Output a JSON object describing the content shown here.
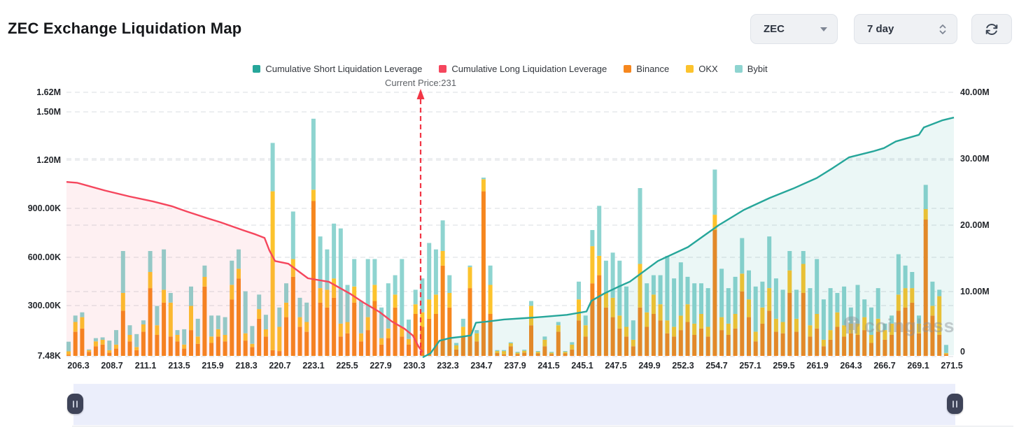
{
  "header": {
    "title": "ZEC Exchange Liquidation Map",
    "symbol_select": {
      "value": "ZEC"
    },
    "range_select": {
      "value": "7 day"
    },
    "refresh_tooltip": "refresh"
  },
  "watermark": {
    "text": "coinglass"
  },
  "chart_data": {
    "type": "bar",
    "subtype": "stacked bars + cumulative lines (liquidation map)",
    "title": "ZEC Exchange Liquidation Map",
    "current_price": 231,
    "current_price_annotation": "Current Price:231",
    "legend": [
      {
        "label": "Cumulative Short Liquidation Leverage",
        "color": "#26a69a"
      },
      {
        "label": "Cumulative Long Liquidation Leverage",
        "color": "#f5465d"
      },
      {
        "label": "Binance",
        "color": "#f6871e"
      },
      {
        "label": "OKX",
        "color": "#fcc32d"
      },
      {
        "label": "Bybit",
        "color": "#8ed4d0"
      }
    ],
    "x_axis": {
      "tick_labels": [
        "206.3",
        "208.7",
        "211.1",
        "213.5",
        "215.9",
        "218.3",
        "220.7",
        "223.1",
        "225.5",
        "227.9",
        "230.3",
        "232.3",
        "234.7",
        "237.9",
        "241.5",
        "245.1",
        "247.5",
        "249.9",
        "252.3",
        "254.7",
        "257.1",
        "259.5",
        "261.9",
        "264.3",
        "266.7",
        "269.1",
        "271.5"
      ]
    },
    "left_axis": {
      "tick_labels": [
        "1.62M",
        "1.50M",
        "1.20M",
        "900.00K",
        "600.00K",
        "300.00K",
        "7.48K"
      ],
      "tick_values_k": [
        1620,
        1500,
        1200,
        900,
        600,
        300,
        7.48
      ],
      "range_k": [
        7.48,
        1620
      ]
    },
    "right_axis": {
      "tick_labels": [
        "40.00M",
        "30.00M",
        "20.00M",
        "10.00M",
        "0"
      ],
      "tick_values_m": [
        40,
        30,
        20,
        10,
        0
      ],
      "range_m": [
        0,
        40
      ]
    },
    "bar_series_order": [
      "Binance",
      "OKX",
      "Bybit"
    ],
    "bar_colors": {
      "Binance": "#f6871e",
      "OKX": "#fcc32d",
      "Bybit": "#8ed4d0"
    },
    "bars_k": [
      [
        8,
        20,
        60
      ],
      [
        150,
        60,
        40
      ],
      [
        170,
        70,
        30
      ],
      [
        25,
        10,
        5
      ],
      [
        60,
        30,
        20
      ],
      [
        70,
        30,
        15
      ],
      [
        20,
        15,
        60
      ],
      [
        45,
        25,
        90
      ],
      [
        280,
        110,
        260
      ],
      [
        90,
        40,
        60
      ],
      [
        35,
        20,
        80
      ],
      [
        150,
        45,
        25
      ],
      [
        420,
        100,
        130
      ],
      [
        130,
        60,
        120
      ],
      [
        330,
        80,
        250
      ],
      [
        120,
        210,
        60
      ],
      [
        90,
        40,
        30
      ],
      [
        45,
        25,
        95
      ],
      [
        160,
        150,
        120
      ],
      [
        75,
        45,
        110
      ],
      [
        430,
        60,
        70
      ],
      [
        80,
        40,
        130
      ],
      [
        120,
        45,
        85
      ],
      [
        90,
        40,
        110
      ],
      [
        350,
        90,
        150
      ],
      [
        480,
        60,
        120
      ],
      [
        95,
        45,
        260
      ],
      [
        55,
        20,
        110
      ],
      [
        230,
        60,
        90
      ],
      [
        120,
        45,
        90
      ],
      [
        35,
        985,
        300
      ],
      [
        30,
        150,
        120
      ],
      [
        240,
        90,
        120
      ],
      [
        490,
        110,
        295
      ],
      [
        180,
        60,
        120
      ],
      [
        150,
        60,
        120
      ],
      [
        960,
        70,
        440
      ],
      [
        330,
        90,
        320
      ],
      [
        300,
        110,
        250
      ],
      [
        360,
        120,
        340
      ],
      [
        120,
        80,
        590
      ],
      [
        140,
        70,
        230
      ],
      [
        330,
        100,
        170
      ],
      [
        90,
        50,
        200
      ],
      [
        160,
        80,
        360
      ],
      [
        340,
        100,
        160
      ],
      [
        70,
        40,
        190
      ],
      [
        110,
        60,
        280
      ],
      [
        300,
        80,
        120
      ],
      [
        120,
        60,
        420
      ],
      [
        70,
        35,
        120
      ],
      [
        260,
        60,
        90
      ],
      [
        180,
        90,
        210
      ],
      [
        230,
        120,
        350
      ],
      [
        260,
        120,
        280
      ],
      [
        560,
        90,
        190
      ],
      [
        300,
        90,
        110
      ],
      [
        40,
        25,
        15
      ],
      [
        120,
        60,
        50
      ],
      [
        420,
        130,
        10
      ],
      [
        90,
        50,
        20
      ],
      [
        1020,
        75,
        10
      ],
      [
        260,
        180,
        120
      ],
      [
        18,
        12,
        6
      ],
      [
        10,
        20,
        6
      ],
      [
        60,
        18,
        6
      ],
      [
        12,
        8,
        4
      ],
      [
        20,
        12,
        6
      ],
      [
        190,
        120,
        30
      ],
      [
        15,
        10,
        5
      ],
      [
        60,
        40,
        20
      ],
      [
        12,
        8,
        5
      ],
      [
        150,
        40,
        20
      ],
      [
        15,
        10,
        5
      ],
      [
        40,
        30,
        15
      ],
      [
        220,
        130,
        110
      ],
      [
        120,
        70,
        60
      ],
      [
        450,
        230,
        100
      ],
      [
        500,
        120,
        310
      ],
      [
        300,
        90,
        200
      ],
      [
        240,
        120,
        280
      ],
      [
        170,
        80,
        340
      ],
      [
        120,
        60,
        250
      ],
      [
        60,
        40,
        120
      ],
      [
        300,
        270,
        470
      ],
      [
        180,
        90,
        180
      ],
      [
        260,
        120,
        120
      ],
      [
        220,
        100,
        180
      ],
      [
        140,
        80,
        400
      ],
      [
        120,
        60,
        300
      ],
      [
        160,
        90,
        330
      ],
      [
        210,
        110,
        170
      ],
      [
        130,
        70,
        250
      ],
      [
        170,
        90,
        190
      ],
      [
        120,
        60,
        240
      ],
      [
        780,
        95,
        280
      ],
      [
        160,
        80,
        300
      ],
      [
        130,
        70,
        220
      ],
      [
        170,
        90,
        230
      ],
      [
        400,
        110,
        220
      ],
      [
        240,
        110,
        180
      ],
      [
        90,
        60,
        280
      ],
      [
        200,
        100,
        160
      ],
      [
        280,
        140,
        320
      ],
      [
        150,
        80,
        250
      ],
      [
        140,
        70,
        200
      ],
      [
        390,
        140,
        120
      ],
      [
        150,
        80,
        180
      ],
      [
        390,
        180,
        80
      ],
      [
        120,
        70,
        230
      ],
      [
        170,
        90,
        340
      ],
      [
        60,
        40,
        250
      ],
      [
        100,
        60,
        260
      ],
      [
        180,
        90,
        120
      ],
      [
        120,
        70,
        240
      ],
      [
        140,
        60,
        100
      ],
      [
        130,
        70,
        240
      ],
      [
        160,
        80,
        110
      ],
      [
        80,
        50,
        170
      ],
      [
        150,
        80,
        190
      ],
      [
        100,
        60,
        40
      ],
      [
        130,
        70,
        50
      ],
      [
        280,
        100,
        250
      ],
      [
        300,
        120,
        140
      ],
      [
        330,
        90,
        100
      ],
      [
        140,
        60,
        50
      ],
      [
        845,
        65,
        150
      ],
      [
        250,
        60,
        150
      ],
      [
        130,
        240,
        40
      ],
      [
        10,
        8,
        50
      ]
    ],
    "long_line": {
      "name": "Cumulative Long Liquidation Leverage",
      "color": "#f5465d",
      "fill": "rgba(245,70,93,0.08)",
      "points_x_k": [
        [
          95,
          1065
        ],
        [
          110,
          1060
        ],
        [
          150,
          1012
        ],
        [
          185,
          975
        ],
        [
          218,
          945
        ],
        [
          245,
          915
        ],
        [
          268,
          880
        ],
        [
          298,
          838
        ],
        [
          315,
          815
        ],
        [
          348,
          765
        ],
        [
          365,
          740
        ],
        [
          378,
          718
        ],
        [
          385,
          640
        ],
        [
          393,
          575
        ],
        [
          412,
          558
        ],
        [
          440,
          468
        ],
        [
          470,
          446
        ],
        [
          500,
          373
        ],
        [
          520,
          316
        ],
        [
          542,
          260
        ],
        [
          560,
          200
        ],
        [
          578,
          155
        ],
        [
          590,
          113
        ],
        [
          598,
          45
        ],
        [
          604,
          10
        ]
      ]
    },
    "short_line": {
      "name": "Cumulative Short Liquidation Leverage",
      "color": "#26a69a",
      "fill": "rgba(38,166,154,0.09)",
      "points_x_m": [
        [
          604,
          0.1
        ],
        [
          615,
          0.7
        ],
        [
          628,
          2.6
        ],
        [
          643,
          3.0
        ],
        [
          660,
          3.2
        ],
        [
          673,
          3.4
        ],
        [
          680,
          5.3
        ],
        [
          697,
          5.5
        ],
        [
          720,
          5.8
        ],
        [
          750,
          6.0
        ],
        [
          777,
          6.2
        ],
        [
          810,
          6.5
        ],
        [
          838,
          7.0
        ],
        [
          845,
          8.6
        ],
        [
          863,
          9.7
        ],
        [
          883,
          10.7
        ],
        [
          900,
          11.5
        ],
        [
          940,
          14.6
        ],
        [
          983,
          16.7
        ],
        [
          1027,
          20.0
        ],
        [
          1063,
          22.3
        ],
        [
          1100,
          24.1
        ],
        [
          1133,
          25.5
        ],
        [
          1167,
          27.1
        ],
        [
          1190,
          28.6
        ],
        [
          1213,
          30.2
        ],
        [
          1247,
          31.1
        ],
        [
          1263,
          31.6
        ],
        [
          1280,
          32.6
        ],
        [
          1313,
          33.6
        ],
        [
          1320,
          34.7
        ],
        [
          1347,
          35.8
        ],
        [
          1363,
          36.2
        ]
      ]
    },
    "grid": {
      "dashed": true,
      "color": "#e6e8eb"
    },
    "current_price_line_color": "#f23645"
  }
}
